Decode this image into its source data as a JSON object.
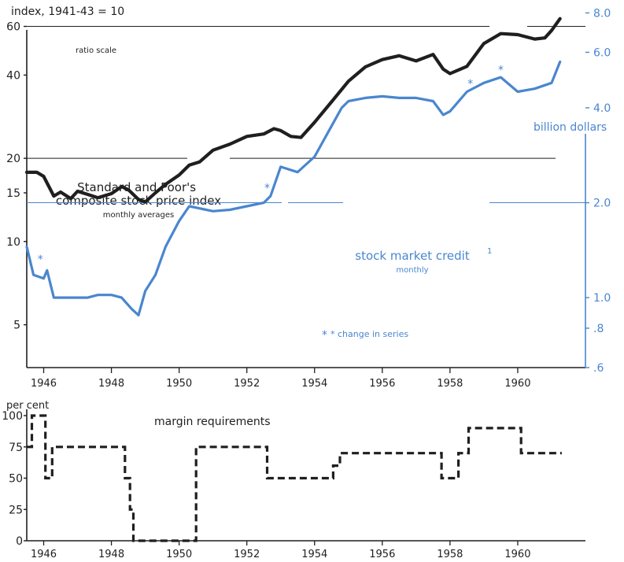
{
  "chart_data": [
    {
      "type": "line",
      "title": "",
      "scale_note": "ratio scale",
      "x_tick_labels": [
        "1946",
        "1948",
        "1950",
        "1952",
        "1954",
        "1956",
        "1958",
        "1960"
      ],
      "x_range": [
        1945.5,
        1962.0
      ],
      "left_axis": {
        "label": "index, 1941-43 = 10",
        "scale": "log",
        "range": [
          3.5,
          70
        ],
        "ticks": [
          5,
          10,
          15,
          20,
          40,
          60
        ]
      },
      "right_axis": {
        "label": "billion dollars",
        "scale": "log",
        "range": [
          0.6,
          8.3
        ],
        "ticks": [
          ".6",
          ".8",
          "1.0",
          "2.0",
          "4.0",
          "6.0",
          "8.0"
        ]
      },
      "series": [
        {
          "name": "Standard and Poor's composite stock price index",
          "subtitle": "monthly averages",
          "axis": "left",
          "color": "#1f1f1f",
          "x": [
            1945.5,
            1945.8,
            1946.0,
            1946.3,
            1946.5,
            1946.8,
            1947.0,
            1947.3,
            1947.6,
            1948.0,
            1948.3,
            1948.5,
            1948.8,
            1949.0,
            1949.3,
            1949.6,
            1950.0,
            1950.3,
            1950.6,
            1951.0,
            1951.5,
            1952.0,
            1952.5,
            1952.8,
            1953.0,
            1953.3,
            1953.6,
            1954.0,
            1954.5,
            1955.0,
            1955.5,
            1956.0,
            1956.5,
            1957.0,
            1957.5,
            1957.8,
            1958.0,
            1958.5,
            1959.0,
            1959.5,
            1960.0,
            1960.5,
            1960.8,
            1961.0,
            1961.25
          ],
          "values": [
            17.8,
            17.8,
            17.2,
            14.6,
            15.1,
            14.3,
            15.2,
            14.8,
            14.4,
            14.9,
            15.8,
            15.4,
            14.2,
            13.9,
            15.0,
            16.1,
            17.4,
            18.9,
            19.4,
            21.4,
            22.5,
            24.0,
            24.5,
            25.6,
            25.2,
            24.0,
            23.8,
            27.0,
            32.0,
            38.0,
            42.8,
            45.5,
            47.0,
            45.0,
            47.5,
            42.0,
            40.5,
            43.0,
            52.0,
            56.5,
            56.0,
            54.0,
            54.5,
            58.0,
            64.0
          ]
        },
        {
          "name": "stock market credit",
          "footnote": "1",
          "subtitle": "monthly",
          "axis": "right",
          "color": "#4a86cf",
          "x": [
            1945.5,
            1945.7,
            1946.0,
            1946.1,
            1946.3,
            1946.6,
            1947.0,
            1947.3,
            1947.6,
            1948.0,
            1948.3,
            1948.6,
            1948.8,
            1949.0,
            1949.3,
            1949.6,
            1950.0,
            1950.3,
            1950.6,
            1951.0,
            1951.5,
            1952.0,
            1952.5,
            1952.7,
            1953.0,
            1953.5,
            1954.0,
            1954.5,
            1954.8,
            1955.0,
            1955.5,
            1956.0,
            1956.5,
            1957.0,
            1957.5,
            1957.8,
            1958.0,
            1958.5,
            1959.0,
            1959.5,
            1960.0,
            1960.5,
            1961.0,
            1961.25
          ],
          "values": [
            1.45,
            1.18,
            1.15,
            1.22,
            1.0,
            1.0,
            1.0,
            1.0,
            1.02,
            1.02,
            1.0,
            0.92,
            0.88,
            1.05,
            1.18,
            1.45,
            1.75,
            1.95,
            1.92,
            1.88,
            1.9,
            1.95,
            2.0,
            2.1,
            2.6,
            2.5,
            2.8,
            3.5,
            4.0,
            4.2,
            4.3,
            4.35,
            4.3,
            4.3,
            4.2,
            3.8,
            3.9,
            4.5,
            4.8,
            5.0,
            4.5,
            4.6,
            4.8,
            5.6
          ]
        }
      ],
      "annotations": [
        {
          "text": "*",
          "x": 1945.9,
          "y": 1.32,
          "axis": "right"
        },
        {
          "text": "*",
          "x": 1952.6,
          "y": 2.22,
          "axis": "right"
        },
        {
          "text": "*",
          "x": 1958.6,
          "y": 4.75,
          "axis": "right"
        },
        {
          "text": "*",
          "x": 1959.5,
          "y": 5.25,
          "axis": "right"
        }
      ],
      "note": "* change in series"
    },
    {
      "type": "line",
      "step": true,
      "title": "margin requirements",
      "ylabel": "per cent",
      "x_tick_labels": [
        "1946",
        "1948",
        "1950",
        "1952",
        "1954",
        "1956",
        "1958",
        "1960"
      ],
      "x_range": [
        1945.5,
        1962.0
      ],
      "ylim": [
        0,
        100
      ],
      "y_ticks": [
        0,
        25,
        50,
        75,
        100
      ],
      "series": [
        {
          "name": "margin requirements",
          "color": "#1f1f1f",
          "x": [
            1945.5,
            1945.65,
            1946.05,
            1946.25,
            1948.4,
            1948.55,
            1948.65,
            1949.0,
            1950.5,
            1952.6,
            1954.55,
            1954.75,
            1957.75,
            1958.25,
            1958.55,
            1960.1,
            1961.3
          ],
          "values": [
            75,
            100,
            50,
            75,
            50,
            25,
            0,
            0,
            75,
            50,
            60,
            70,
            50,
            70,
            90,
            70,
            70
          ]
        }
      ]
    }
  ]
}
